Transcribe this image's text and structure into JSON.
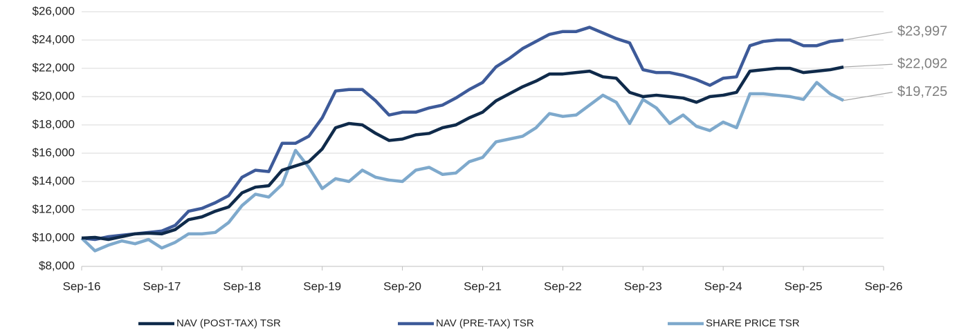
{
  "chart_data": {
    "type": "line",
    "x": [
      "2016-09",
      "2016-11",
      "2017-01",
      "2017-03",
      "2017-05",
      "2017-07",
      "2017-09",
      "2017-11",
      "2018-01",
      "2018-03",
      "2018-05",
      "2018-07",
      "2018-09",
      "2018-11",
      "2019-01",
      "2019-03",
      "2019-05",
      "2019-07",
      "2019-09",
      "2019-11",
      "2020-01",
      "2020-03",
      "2020-05",
      "2020-07",
      "2020-09",
      "2020-11",
      "2021-01",
      "2021-03",
      "2021-05",
      "2021-07",
      "2021-09",
      "2021-11",
      "2022-01",
      "2022-03",
      "2022-05",
      "2022-07",
      "2022-09",
      "2022-11",
      "2023-01",
      "2023-03",
      "2023-05",
      "2023-07",
      "2023-09",
      "2023-11",
      "2024-01",
      "2024-03",
      "2024-05",
      "2024-07",
      "2024-09",
      "2024-11",
      "2025-01",
      "2025-03",
      "2025-05",
      "2025-07",
      "2025-09",
      "2025-11",
      "2026-01",
      "2026-03"
    ],
    "series": [
      {
        "name": "NAV (POST-TAX) TSR",
        "color": "#0f2a4a",
        "values": [
          10000,
          10050,
          9900,
          10100,
          10300,
          10350,
          10300,
          10600,
          11300,
          11500,
          11900,
          12200,
          13200,
          13600,
          13700,
          14800,
          15100,
          15400,
          16300,
          17800,
          18100,
          18000,
          17400,
          16900,
          17000,
          17300,
          17400,
          17800,
          18000,
          18500,
          18900,
          19700,
          20200,
          20700,
          21100,
          21600,
          21600,
          21700,
          21800,
          21400,
          21300,
          20300,
          20000,
          20100,
          20000,
          19900,
          19600,
          20000,
          20100,
          20300,
          21800,
          21900,
          22000,
          22000,
          21700,
          21800,
          21900,
          22092
        ],
        "value_labels": [
          null,
          null,
          null,
          null,
          null,
          null,
          null,
          null,
          null,
          null,
          null,
          null,
          null,
          null,
          null,
          null,
          null,
          null,
          null,
          null,
          null,
          null,
          null,
          null,
          null,
          null,
          null,
          null,
          null,
          null,
          null,
          null,
          null,
          null,
          null,
          null,
          null,
          null,
          null,
          null,
          null,
          null,
          null,
          null,
          null,
          null,
          null,
          null,
          null,
          null,
          null,
          null,
          null,
          null,
          null,
          null,
          null,
          "$22,092"
        ]
      },
      {
        "name": "NAV (PRE-TAX) TSR",
        "color": "#3d5a99",
        "values": [
          10000,
          9900,
          10100,
          10200,
          10300,
          10400,
          10500,
          10900,
          11900,
          12100,
          12500,
          13000,
          14300,
          14800,
          14700,
          16700,
          16700,
          17200,
          18500,
          20400,
          20500,
          20500,
          19700,
          18700,
          18900,
          18900,
          19200,
          19400,
          19900,
          20500,
          21000,
          22100,
          22700,
          23400,
          23900,
          24400,
          24600,
          24600,
          24900,
          24500,
          24100,
          23800,
          21900,
          21700,
          21700,
          21500,
          21200,
          20800,
          21300,
          21400,
          23600,
          23900,
          24000,
          24000,
          23600,
          23600,
          23900,
          23997
        ],
        "value_labels": [
          null,
          null,
          null,
          null,
          null,
          null,
          null,
          null,
          null,
          null,
          null,
          null,
          null,
          null,
          null,
          null,
          null,
          null,
          null,
          null,
          null,
          null,
          null,
          null,
          null,
          null,
          null,
          null,
          null,
          null,
          null,
          null,
          null,
          null,
          null,
          null,
          null,
          null,
          null,
          null,
          null,
          null,
          null,
          null,
          null,
          null,
          null,
          null,
          null,
          null,
          null,
          null,
          null,
          null,
          null,
          null,
          null,
          "$23,997"
        ]
      },
      {
        "name": "SHARE PRICE TSR",
        "color": "#7ea9cc",
        "values": [
          10000,
          9100,
          9500,
          9800,
          9600,
          9900,
          9300,
          9700,
          10300,
          10300,
          10400,
          11100,
          12300,
          13100,
          12900,
          13800,
          16200,
          15000,
          13500,
          14200,
          14000,
          14800,
          14300,
          14100,
          14000,
          14800,
          15000,
          14500,
          14600,
          15400,
          15700,
          16800,
          17000,
          17200,
          17800,
          18800,
          18600,
          18700,
          19400,
          20100,
          19600,
          18100,
          19800,
          19200,
          18100,
          18700,
          17900,
          17600,
          18200,
          17800,
          20200,
          20200,
          20100,
          20000,
          19800,
          21000,
          20200,
          19725
        ],
        "value_labels": [
          null,
          null,
          null,
          null,
          null,
          null,
          null,
          null,
          null,
          null,
          null,
          null,
          null,
          null,
          null,
          null,
          null,
          null,
          null,
          null,
          null,
          null,
          null,
          null,
          null,
          null,
          null,
          null,
          null,
          null,
          null,
          null,
          null,
          null,
          null,
          null,
          null,
          null,
          null,
          null,
          null,
          null,
          null,
          null,
          null,
          null,
          null,
          null,
          null,
          null,
          null,
          null,
          null,
          null,
          null,
          null,
          null,
          "$19,725"
        ]
      }
    ],
    "xlim": [
      "2016-09",
      "2026-09"
    ],
    "xticks": [
      {
        "value": "2016-09",
        "label": "Sep-16"
      },
      {
        "value": "2017-09",
        "label": "Sep-17"
      },
      {
        "value": "2018-09",
        "label": "Sep-18"
      },
      {
        "value": "2019-09",
        "label": "Sep-19"
      },
      {
        "value": "2020-09",
        "label": "Sep-20"
      },
      {
        "value": "2021-09",
        "label": "Sep-21"
      },
      {
        "value": "2022-09",
        "label": "Sep-22"
      },
      {
        "value": "2023-09",
        "label": "Sep-23"
      },
      {
        "value": "2024-09",
        "label": "Sep-24"
      },
      {
        "value": "2025-09",
        "label": "Sep-25"
      },
      {
        "value": "2026-09",
        "label": "Sep-26"
      }
    ],
    "ylim": [
      8000,
      26000
    ],
    "yticks": [
      {
        "value": 8000,
        "label": "$8,000"
      },
      {
        "value": 10000,
        "label": "$10,000"
      },
      {
        "value": 12000,
        "label": "$12,000"
      },
      {
        "value": 14000,
        "label": "$14,000"
      },
      {
        "value": 16000,
        "label": "$16,000"
      },
      {
        "value": 18000,
        "label": "$18,000"
      },
      {
        "value": 20000,
        "label": "$20,000"
      },
      {
        "value": 22000,
        "label": "$22,000"
      },
      {
        "value": 24000,
        "label": "$24,000"
      },
      {
        "value": 26000,
        "label": "$26,000"
      }
    ],
    "grid": true,
    "legend": "bottom"
  }
}
